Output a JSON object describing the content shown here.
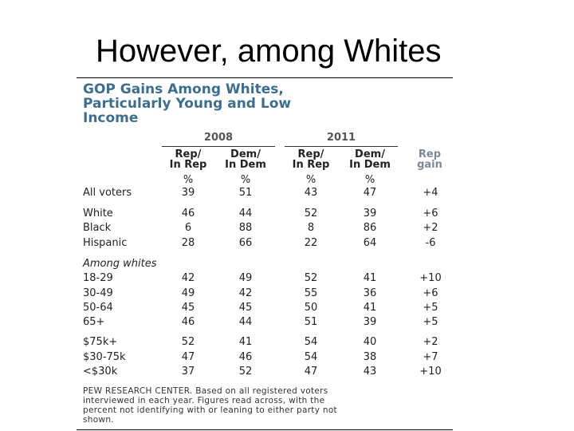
{
  "slide": {
    "title": "However, among Whites"
  },
  "table": {
    "headline_lines": [
      "GOP Gains Among Whites,",
      "Particularly Young and Low",
      "Income"
    ],
    "years": [
      "2008",
      "2011"
    ],
    "columns": [
      {
        "line1": "Rep/",
        "line2": "In Rep"
      },
      {
        "line1": "Dem/",
        "line2": "In Dem"
      },
      {
        "line1": "Rep/",
        "line2": "In Rep"
      },
      {
        "line1": "Dem/",
        "line2": "In Dem"
      },
      {
        "line1": "Rep",
        "line2": "gain"
      }
    ],
    "pct_symbols": [
      "%",
      "%",
      "%",
      "%"
    ],
    "rows": [
      {
        "label": "All voters",
        "values": [
          "39",
          "51",
          "43",
          "47",
          "+4"
        ]
      },
      {
        "label": "White",
        "values": [
          "46",
          "44",
          "52",
          "39",
          "+6"
        ]
      },
      {
        "label": "Black",
        "values": [
          "6",
          "88",
          "8",
          "86",
          "+2"
        ]
      },
      {
        "label": "Hispanic",
        "values": [
          "28",
          "66",
          "22",
          "64",
          "-6"
        ]
      },
      {
        "label": "18-29",
        "values": [
          "42",
          "49",
          "52",
          "41",
          "+10"
        ]
      },
      {
        "label": "30-49",
        "values": [
          "49",
          "42",
          "55",
          "36",
          "+6"
        ]
      },
      {
        "label": "50-64",
        "values": [
          "45",
          "45",
          "50",
          "41",
          "+5"
        ]
      },
      {
        "label": "65+",
        "values": [
          "46",
          "44",
          "51",
          "39",
          "+5"
        ]
      },
      {
        "label": "$75k+",
        "values": [
          "52",
          "41",
          "54",
          "40",
          "+2"
        ]
      },
      {
        "label": "$30-75k",
        "values": [
          "47",
          "46",
          "54",
          "38",
          "+7"
        ]
      },
      {
        "label": "<$30k",
        "values": [
          "37",
          "52",
          "47",
          "43",
          "+10"
        ]
      }
    ],
    "subhead": "Among whites",
    "footnote_lines": [
      "PEW RESEARCH CENTER. Based on all registered voters",
      "interviewed in each year. Figures read across, with the",
      "percent not identifying with or leaning to either party not",
      "shown."
    ]
  }
}
